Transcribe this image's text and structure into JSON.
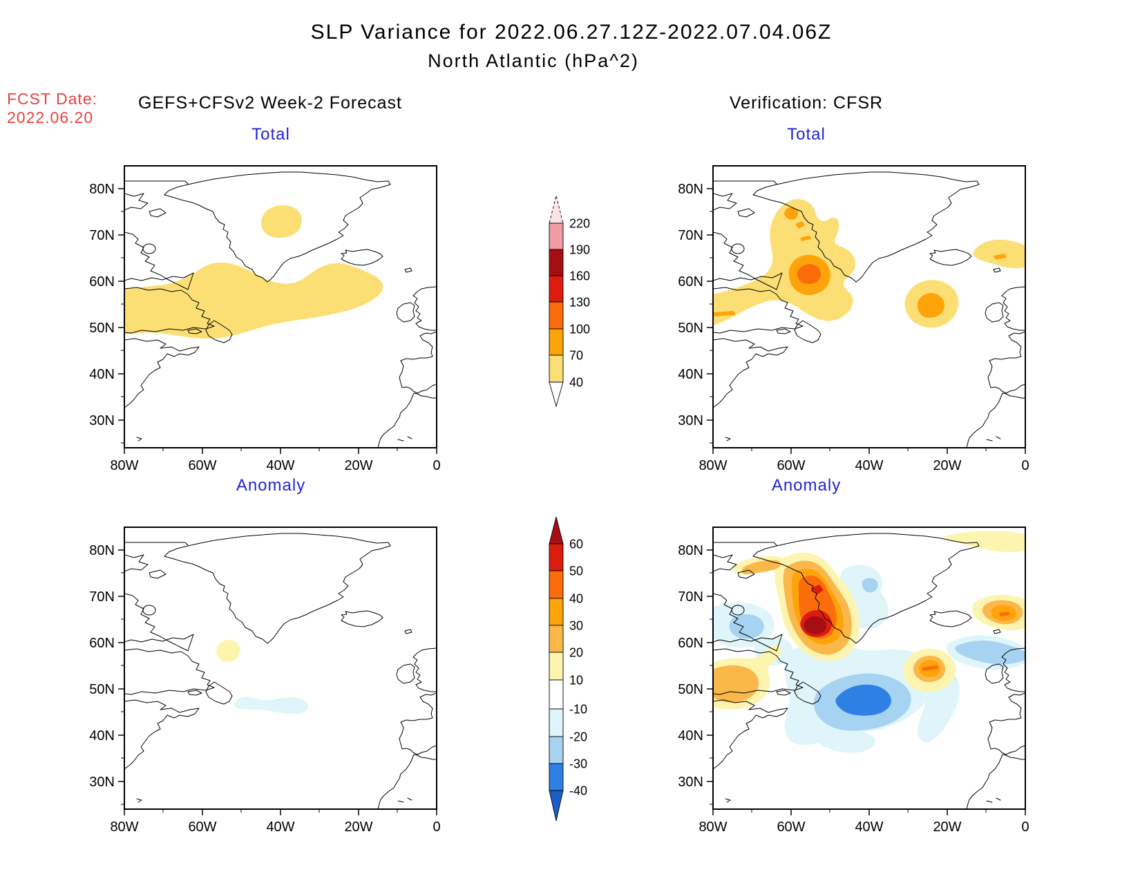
{
  "title": {
    "line1": "SLP Variance for 2022.06.27.12Z-2022.07.04.06Z",
    "line2": "North Atlantic (hPa^2)"
  },
  "forecast_info": {
    "label": "FCST Date:",
    "date": "2022.06.20"
  },
  "headers": {
    "left": "GEFS+CFSv2 Week-2 Forecast",
    "right": "Verification: CFSR"
  },
  "panels": [
    {
      "id": "forecast-total",
      "title": "Total"
    },
    {
      "id": "verification-total",
      "title": "Total"
    },
    {
      "id": "forecast-anomaly",
      "title": "Anomaly"
    },
    {
      "id": "verification-anomaly",
      "title": "Anomaly"
    }
  ],
  "axes": {
    "lat_ticks": [
      "80N",
      "70N",
      "60N",
      "50N",
      "40N",
      "30N"
    ],
    "lon_ticks": [
      "80W",
      "60W",
      "40W",
      "20W",
      "0"
    ]
  },
  "palette": {
    "pale_pink": "#FBE3E6",
    "pink": "#F19BA4",
    "dark_red": "#A50E12",
    "red": "#DD1C10",
    "orange_red": "#FB6C0B",
    "orange": "#FFA30B",
    "amber": "#FBB84A",
    "yellow": "#FBDF75",
    "pale_yellow": "#FDF5AF",
    "white": "#FFFFFF",
    "pale_cyan": "#DFF5F9",
    "light_blue": "#A7D3F2",
    "mid_blue": "#2E80E4",
    "deep_blue": "#1A5EC8",
    "fcst_red": "#E84040",
    "title_blue": "#2323D7"
  },
  "colorbars": {
    "total": {
      "labels": [
        "220",
        "190",
        "160",
        "130",
        "100",
        "70",
        "40"
      ],
      "segment_colors": [
        "pink",
        "dark_red",
        "red",
        "orange_red",
        "orange",
        "yellow"
      ],
      "arrow_top": "pale_pink"
    },
    "anomaly": {
      "labels": [
        "60",
        "50",
        "40",
        "30",
        "20",
        "10",
        "-10",
        "-20",
        "-30",
        "-40"
      ],
      "segment_colors": [
        "red",
        "orange_red",
        "orange",
        "amber",
        "pale_yellow",
        "white",
        "pale_cyan",
        "light_blue",
        "mid_blue"
      ],
      "arrow_top": "dark_red",
      "arrow_bottom": "deep_blue"
    }
  },
  "chart_data": [
    {
      "type": "filled_contour_map",
      "panel": "GEFS+CFSv2 Week-2 Forecast - Total",
      "units": "hPa^2",
      "levels": [
        40,
        70,
        100,
        130,
        160,
        190,
        220
      ],
      "lat_range": [
        25,
        85
      ],
      "lon_range": [
        -80,
        0
      ],
      "features": [
        {
          "value_band": "40-70",
          "description": "patch over central Greenland",
          "lat": 74,
          "lon": -40
        },
        {
          "value_band": "40-70",
          "description": "zonal band across the western/central North Atlantic",
          "lat_span": [
            48,
            58
          ],
          "lon_span": [
            -80,
            -14
          ]
        }
      ]
    },
    {
      "type": "filled_contour_map",
      "panel": "Verification: CFSR - Total",
      "units": "hPa^2",
      "levels": [
        40,
        70,
        100,
        130,
        160,
        190,
        220
      ],
      "lat_range": [
        25,
        85
      ],
      "lon_range": [
        -80,
        0
      ],
      "features": [
        {
          "value_band": "40-70",
          "description": "broad region Labrador Sea / Davis Strait up to 76N, connected to band reaching 80W near 48-57N",
          "lat_span": [
            47,
            76
          ],
          "lon_span": [
            -80,
            -44
          ]
        },
        {
          "value_band": "100-130",
          "description": "variance maximum core west of south Greenland",
          "lat": 62,
          "lon": -56
        },
        {
          "value_band": "70-100",
          "description": "ring around the western maximum",
          "lat": 61,
          "lon": -56
        },
        {
          "value_band": "40-70 with 70-100 core",
          "description": "secondary cell in the central Atlantic",
          "lat": 55,
          "lon": -25
        },
        {
          "value_band": "40-70",
          "description": "small patch east of Iceland at map edge",
          "lat": 65,
          "lon": -4
        }
      ]
    },
    {
      "type": "filled_contour_map",
      "panel": "GEFS+CFSv2 Week-2 Forecast - Anomaly",
      "units": "hPa^2",
      "levels": [
        -40,
        -30,
        -20,
        -10,
        10,
        20,
        30,
        40,
        50,
        60
      ],
      "lat_range": [
        25,
        85
      ],
      "lon_range": [
        -80,
        0
      ],
      "features": [
        {
          "value_band": "+10 to +20",
          "description": "small patch in the Labrador Sea",
          "lat": 58,
          "lon": -53
        },
        {
          "value_band": "-10 to -20",
          "description": "small patch south of Newfoundland",
          "lat": 47,
          "lon": -42
        }
      ]
    },
    {
      "type": "filled_contour_map",
      "panel": "Verification: CFSR - Anomaly",
      "units": "hPa^2",
      "levels": [
        -40,
        -30,
        -20,
        -10,
        10,
        20,
        30,
        40,
        50,
        60
      ],
      "lat_range": [
        25,
        85
      ],
      "lon_range": [
        -80,
        0
      ],
      "features": [
        {
          "value_band": "> +60 core",
          "description": "strong positive anomaly west of south Greenland",
          "lat": 62,
          "lon": -56
        },
        {
          "value_band": "+30 to +50",
          "description": "positive band along Davis Strait up to 72N",
          "lat_span": [
            60,
            72
          ],
          "lon_span": [
            -62,
            -48
          ]
        },
        {
          "value_band": "-30 to -40 core",
          "description": "strong negative anomaly, central North Atlantic",
          "lat": 49,
          "lon": -40
        },
        {
          "value_band": "+20 to +30",
          "description": "positive cell off Quebec/Labrador coast",
          "lat": 52,
          "lon": -72
        },
        {
          "value_band": "+20 to +40",
          "description": "positive cell, central Atlantic",
          "lat": 55,
          "lon": -25
        },
        {
          "value_band": "+20 to +40",
          "description": "positive cell east of Iceland",
          "lat": 65,
          "lon": -4
        },
        {
          "value_band": "-20 to -30",
          "description": "negative band near Ireland / UK",
          "lat": 59,
          "lon": -8
        },
        {
          "value_band": "-10 to -30",
          "description": "weak negatives over Baffin Island region",
          "lat": 62,
          "lon": -70
        },
        {
          "value_band": "-10 to -20",
          "description": "weak negative south/east of Greenland",
          "lat": 72,
          "lon": -42
        },
        {
          "value_band": "+10 to +20",
          "description": "weak positive band along top edge NE of Greenland",
          "lat": 83,
          "lon": -12
        }
      ]
    }
  ]
}
